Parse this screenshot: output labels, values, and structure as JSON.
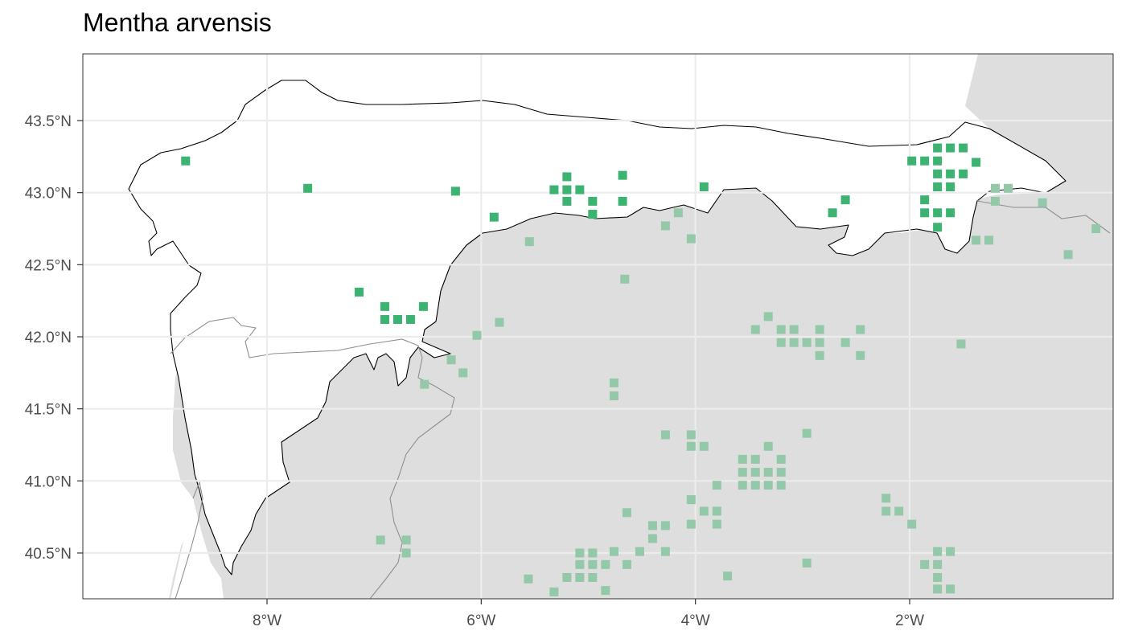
{
  "map": {
    "title": "Mentha arvensis",
    "extent": {
      "lon": [
        -9.85,
        -0.05
      ],
      "lat": [
        40.18,
        43.93
      ]
    },
    "colors": {
      "panel_bg": "#dedede",
      "region_fill": "#ffffff",
      "grid": "#ececec",
      "border": "#333333",
      "outside_boundary": "#8f8f8f",
      "record_inside": "#3cb371",
      "record_outside": "#93c8a9"
    },
    "x_ticks": [
      {
        "value": -8,
        "label": "8°W"
      },
      {
        "value": -6,
        "label": "6°W"
      },
      {
        "value": -4,
        "label": "4°W"
      },
      {
        "value": -2,
        "label": "2°W"
      }
    ],
    "y_ticks": [
      {
        "value": 43.5,
        "label": "43.5°N"
      },
      {
        "value": 43.0,
        "label": "43.0°N"
      },
      {
        "value": 42.5,
        "label": "42.5°N"
      },
      {
        "value": 42.0,
        "label": "42.0°N"
      },
      {
        "value": 41.5,
        "label": "41.5°N"
      },
      {
        "value": 41.0,
        "label": "41.0°N"
      },
      {
        "value": 40.5,
        "label": "40.5°N"
      }
    ],
    "records_inside": [
      [
        -8.76,
        43.22
      ],
      [
        -7.62,
        43.03
      ],
      [
        -6.24,
        43.01
      ],
      [
        -5.88,
        42.83
      ],
      [
        -5.2,
        43.11
      ],
      [
        -5.32,
        43.02
      ],
      [
        -5.2,
        43.02
      ],
      [
        -5.08,
        43.02
      ],
      [
        -5.2,
        42.94
      ],
      [
        -4.96,
        42.94
      ],
      [
        -4.96,
        42.85
      ],
      [
        -4.68,
        43.12
      ],
      [
        -4.68,
        42.94
      ],
      [
        -3.92,
        43.04
      ],
      [
        -2.6,
        42.95
      ],
      [
        -2.72,
        42.86
      ],
      [
        -7.14,
        42.31
      ],
      [
        -6.9,
        42.21
      ],
      [
        -6.9,
        42.12
      ],
      [
        -6.78,
        42.12
      ],
      [
        -6.66,
        42.12
      ],
      [
        -6.54,
        42.21
      ],
      [
        -1.98,
        43.22
      ],
      [
        -1.86,
        43.22
      ],
      [
        -1.74,
        43.22
      ],
      [
        -1.74,
        43.31
      ],
      [
        -1.62,
        43.31
      ],
      [
        -1.5,
        43.31
      ],
      [
        -1.74,
        43.13
      ],
      [
        -1.62,
        43.13
      ],
      [
        -1.5,
        43.13
      ],
      [
        -1.38,
        43.21
      ],
      [
        -1.74,
        43.04
      ],
      [
        -1.62,
        43.04
      ],
      [
        -1.86,
        42.95
      ],
      [
        -1.86,
        42.86
      ],
      [
        -1.74,
        42.86
      ],
      [
        -1.62,
        42.86
      ],
      [
        -1.74,
        42.76
      ]
    ],
    "records_outside": [
      [
        -5.55,
        42.66
      ],
      [
        -4.28,
        42.77
      ],
      [
        -4.16,
        42.86
      ],
      [
        -4.04,
        42.68
      ],
      [
        -4.66,
        42.4
      ],
      [
        -6.04,
        42.01
      ],
      [
        -5.83,
        42.1
      ],
      [
        -6.28,
        41.84
      ],
      [
        -6.17,
        41.75
      ],
      [
        -6.53,
        41.67
      ],
      [
        -4.76,
        41.68
      ],
      [
        -4.76,
        41.59
      ],
      [
        -3.44,
        42.05
      ],
      [
        -3.32,
        42.14
      ],
      [
        -3.2,
        42.05
      ],
      [
        -3.08,
        42.05
      ],
      [
        -2.84,
        42.05
      ],
      [
        -2.46,
        42.05
      ],
      [
        -3.08,
        41.96
      ],
      [
        -3.2,
        41.96
      ],
      [
        -2.96,
        41.96
      ],
      [
        -2.84,
        41.96
      ],
      [
        -2.6,
        41.96
      ],
      [
        -2.84,
        41.87
      ],
      [
        -2.46,
        41.87
      ],
      [
        -1.52,
        41.95
      ],
      [
        -1.2,
        43.03
      ],
      [
        -1.08,
        43.03
      ],
      [
        -1.2,
        42.94
      ],
      [
        -0.76,
        42.93
      ],
      [
        -1.38,
        42.67
      ],
      [
        -1.26,
        42.67
      ],
      [
        -0.52,
        42.57
      ],
      [
        -0.26,
        42.75
      ],
      [
        -4.28,
        41.32
      ],
      [
        -4.04,
        41.32
      ],
      [
        -4.04,
        41.24
      ],
      [
        -3.92,
        41.24
      ],
      [
        -3.32,
        41.24
      ],
      [
        -2.96,
        41.33
      ],
      [
        -3.56,
        41.15
      ],
      [
        -3.44,
        41.15
      ],
      [
        -3.2,
        41.15
      ],
      [
        -3.56,
        41.06
      ],
      [
        -3.44,
        41.06
      ],
      [
        -3.32,
        41.06
      ],
      [
        -3.2,
        41.06
      ],
      [
        -3.56,
        40.97
      ],
      [
        -3.44,
        40.97
      ],
      [
        -3.32,
        40.97
      ],
      [
        -3.2,
        40.97
      ],
      [
        -3.8,
        40.97
      ],
      [
        -4.04,
        40.87
      ],
      [
        -3.92,
        40.79
      ],
      [
        -3.8,
        40.79
      ],
      [
        -4.64,
        40.78
      ],
      [
        -4.04,
        40.7
      ],
      [
        -3.8,
        40.7
      ],
      [
        -4.4,
        40.69
      ],
      [
        -4.28,
        40.69
      ],
      [
        -4.4,
        40.6
      ],
      [
        -4.28,
        40.51
      ],
      [
        -4.52,
        40.51
      ],
      [
        -4.76,
        40.51
      ],
      [
        -5.08,
        40.5
      ],
      [
        -4.96,
        40.5
      ],
      [
        -5.08,
        40.42
      ],
      [
        -4.96,
        40.42
      ],
      [
        -4.84,
        40.42
      ],
      [
        -4.64,
        40.42
      ],
      [
        -5.08,
        40.33
      ],
      [
        -4.96,
        40.33
      ],
      [
        -5.2,
        40.33
      ],
      [
        -5.56,
        40.32
      ],
      [
        -3.7,
        40.34
      ],
      [
        -4.84,
        40.24
      ],
      [
        -5.32,
        40.23
      ],
      [
        -2.96,
        40.43
      ],
      [
        -6.94,
        40.59
      ],
      [
        -6.7,
        40.59
      ],
      [
        -6.7,
        40.5
      ],
      [
        -2.22,
        40.88
      ],
      [
        -2.22,
        40.79
      ],
      [
        -2.1,
        40.79
      ],
      [
        -1.98,
        40.7
      ],
      [
        -1.74,
        40.51
      ],
      [
        -1.62,
        40.51
      ],
      [
        -1.86,
        40.42
      ],
      [
        -1.74,
        40.42
      ],
      [
        -1.74,
        40.33
      ],
      [
        -1.74,
        40.25
      ],
      [
        -1.62,
        40.25
      ]
    ]
  }
}
